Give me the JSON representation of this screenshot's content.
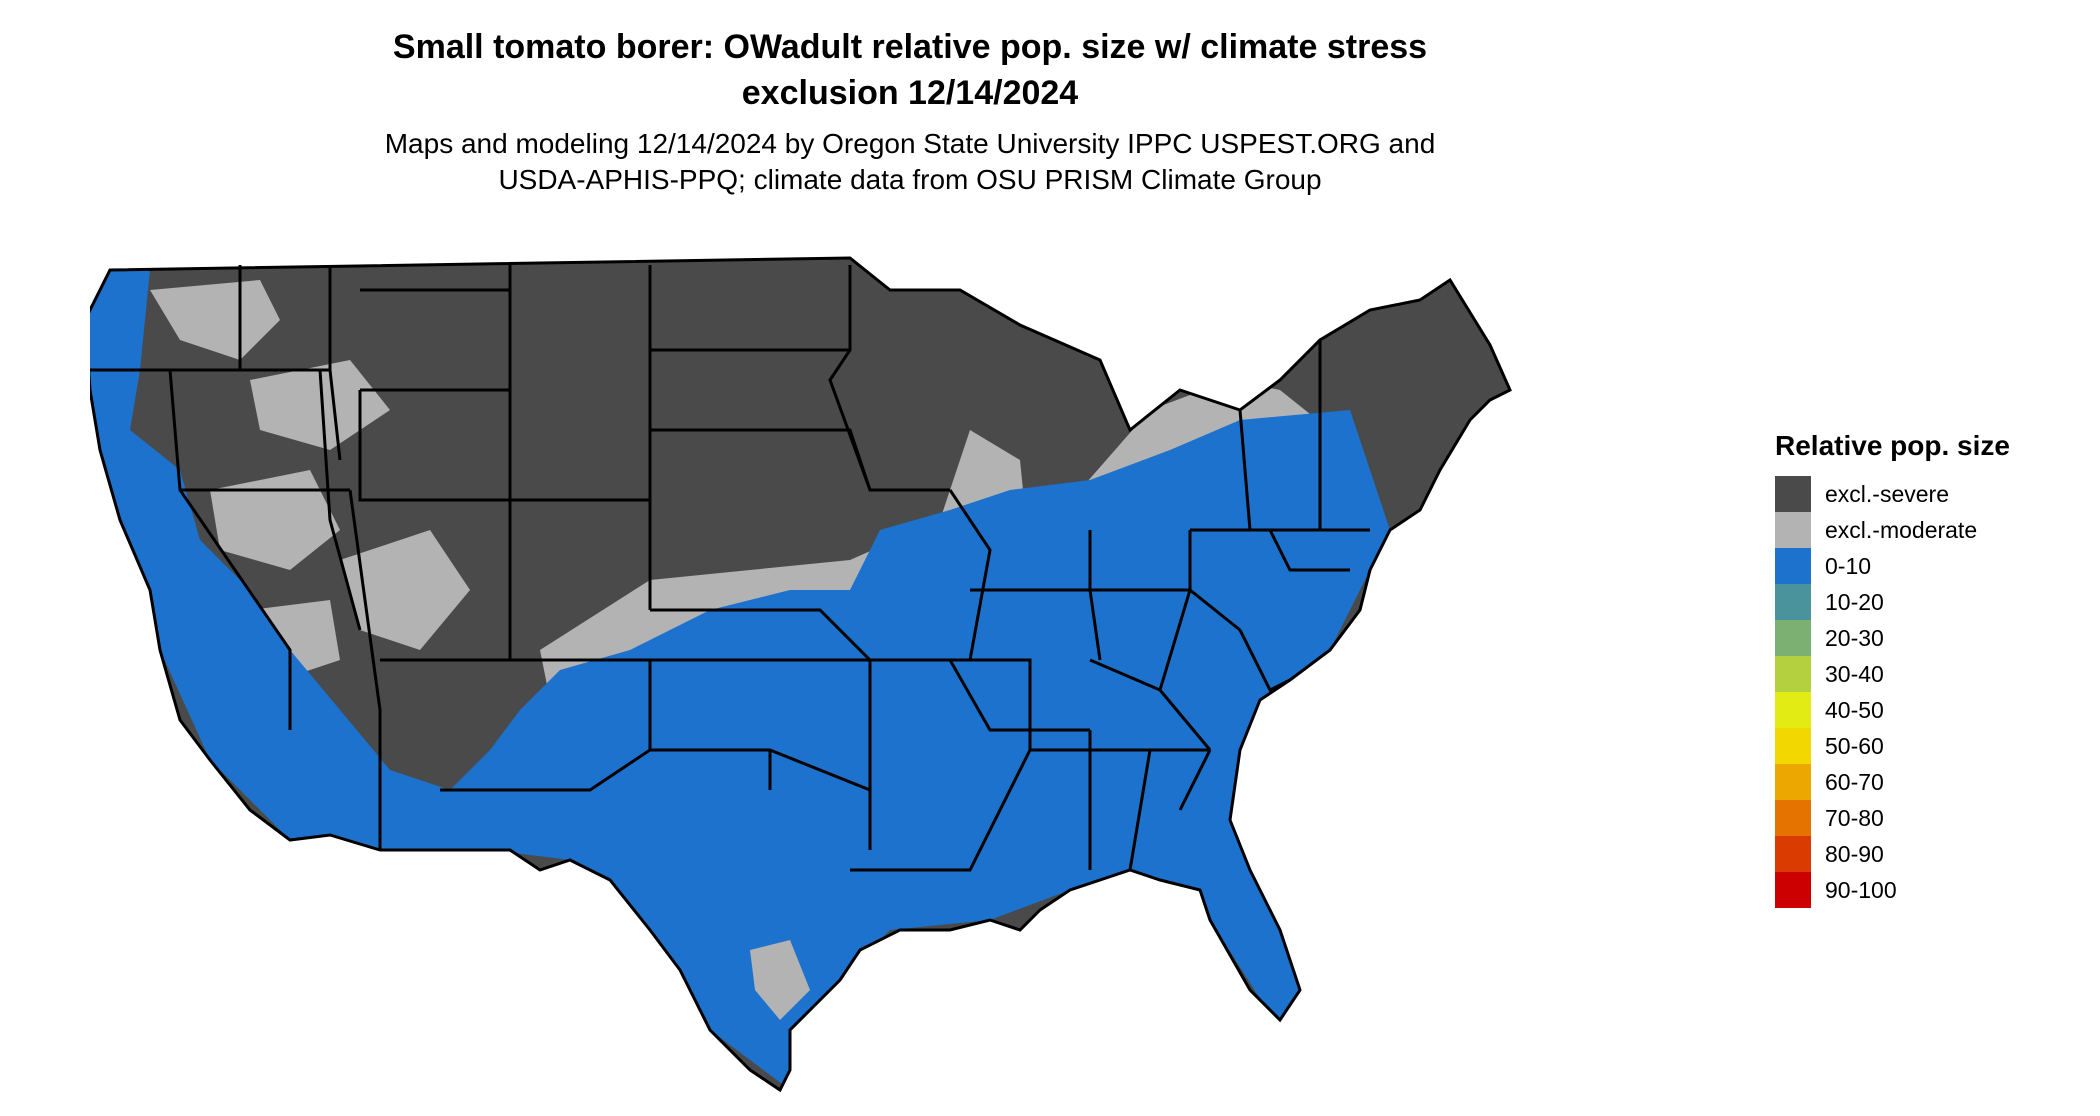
{
  "title_line1": "Small tomato borer: OWadult relative pop. size w/ climate stress",
  "title_line2": "exclusion 12/14/2024",
  "subtitle_line1": "Maps and modeling 12/14/2024 by Oregon State University IPPC USPEST.ORG and",
  "subtitle_line2": "USDA-APHIS-PPQ; climate data from OSU PRISM Climate Group",
  "legend": {
    "title": "Relative pop. size",
    "items": [
      {
        "label": "excl.-severe",
        "color": "#4a4a4a"
      },
      {
        "label": "excl.-moderate",
        "color": "#b3b3b3"
      },
      {
        "label": "0-10",
        "color": "#1c72cc"
      },
      {
        "label": "10-20",
        "color": "#4a939c"
      },
      {
        "label": "20-30",
        "color": "#7cb073"
      },
      {
        "label": "30-40",
        "color": "#b5d03f"
      },
      {
        "label": "40-50",
        "color": "#e3eb14"
      },
      {
        "label": "50-60",
        "color": "#f2d800"
      },
      {
        "label": "60-70",
        "color": "#eda800"
      },
      {
        "label": "70-80",
        "color": "#e57300"
      },
      {
        "label": "80-90",
        "color": "#d93b00"
      },
      {
        "label": "90-100",
        "color": "#cc0000"
      }
    ]
  },
  "map_colors": {
    "severe": "#4a4a4a",
    "moderate": "#b3b3b3",
    "low": "#1c72cc",
    "border": "#000000"
  }
}
